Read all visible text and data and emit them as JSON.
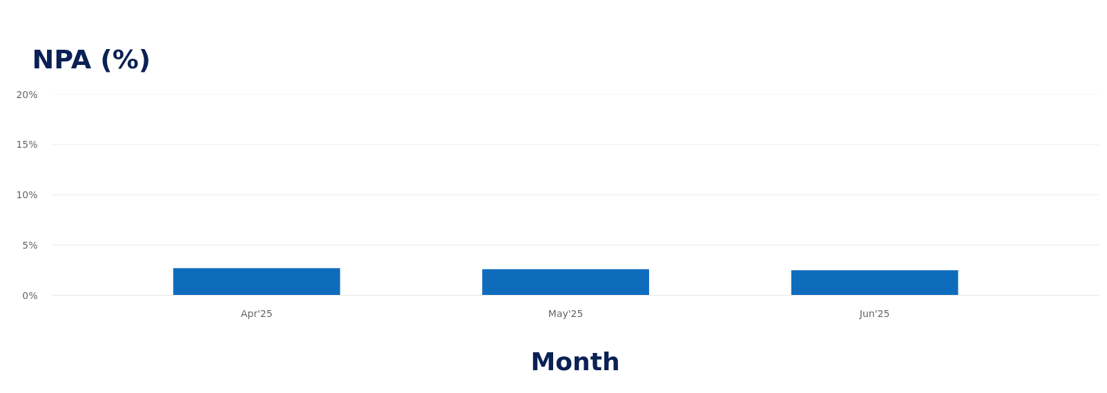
{
  "chart_data": {
    "type": "bar",
    "title": "NPA (%)",
    "xlabel": "Month",
    "categories": [
      "Apr'25",
      "May'25",
      "Jun'25"
    ],
    "values": [
      2.7,
      2.6,
      2.5
    ],
    "color": "#0f6cbd",
    "ylim": [
      0,
      20
    ],
    "yticks": [
      {
        "value": 0,
        "label": "0%"
      },
      {
        "value": 5,
        "label": "5%"
      },
      {
        "value": 10,
        "label": "10%"
      },
      {
        "value": 15,
        "label": "15%"
      },
      {
        "value": 20,
        "label": "20%"
      }
    ],
    "grid": "y"
  }
}
